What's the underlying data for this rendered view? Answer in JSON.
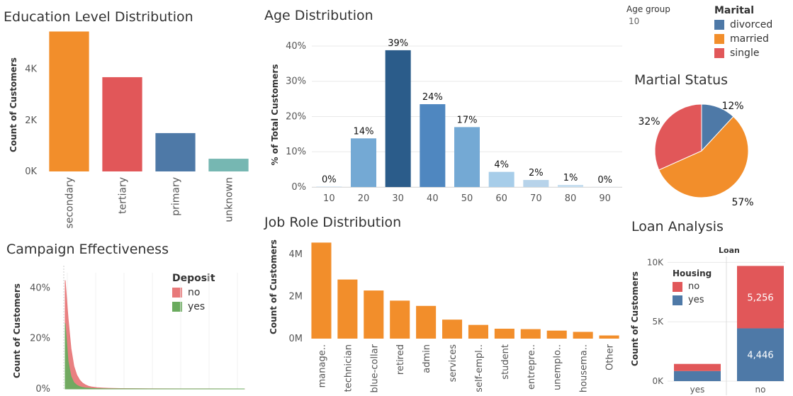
{
  "colors": {
    "orange": "#f28e2b",
    "red": "#e15759",
    "blue": "#4e79a7",
    "teal": "#76b7b2",
    "green": "#59a14f",
    "grid": "#e8e8e8",
    "axis": "#999999",
    "text": "#333333"
  },
  "age_group_filter": {
    "label": "Age group",
    "value": "10"
  },
  "chart_data": [
    {
      "id": "education",
      "type": "bar",
      "title": "Education Level Distribution",
      "ylabel": "Count of Customers",
      "ytick_labels": [
        "0K",
        "2K",
        "4K"
      ],
      "ytick_values": [
        0,
        2000,
        4000
      ],
      "ylim": [
        0,
        5600
      ],
      "categories": [
        "secondary",
        "tertiary",
        "primary",
        "unknown"
      ],
      "values": [
        5476,
        3689,
        1500,
        497
      ],
      "bar_colors": [
        "#f28e2b",
        "#e15759",
        "#4e79a7",
        "#76b7b2"
      ]
    },
    {
      "id": "age",
      "type": "bar",
      "title": "Age Distribution",
      "ylabel": "% of Total Customers",
      "ytick_labels": [
        "0%",
        "10%",
        "20%",
        "30%",
        "40%"
      ],
      "ytick_values": [
        0,
        10,
        20,
        30,
        40
      ],
      "ylim": [
        0,
        42
      ],
      "categories": [
        "10",
        "20",
        "30",
        "40",
        "50",
        "60",
        "70",
        "80",
        "90"
      ],
      "values": [
        0.1,
        13.8,
        38.8,
        23.5,
        17.0,
        4.3,
        2.0,
        0.6,
        0.05
      ],
      "data_labels": [
        "0%",
        "14%",
        "39%",
        "24%",
        "17%",
        "4%",
        "2%",
        "1%",
        "0%"
      ],
      "bar_colors": [
        "#b7d3ea",
        "#74a9d4",
        "#2b5c8a",
        "#4f87c0",
        "#74a9d4",
        "#a7cde9",
        "#b7d3ea",
        "#c6def0",
        "#d7e7f4"
      ]
    },
    {
      "id": "marital",
      "type": "pie",
      "title": "Martial Status",
      "legend_title": "Marital",
      "labels": [
        "divorced",
        "married",
        "single"
      ],
      "values": [
        12,
        57,
        32
      ],
      "data_labels": [
        "12%",
        "57%",
        "32%"
      ],
      "colors": [
        "#4e79a7",
        "#f28e2b",
        "#e15759"
      ]
    },
    {
      "id": "campaign",
      "type": "area",
      "title": "Campaign Effectiveness",
      "ylabel": "Count of Customers",
      "ytick_labels": [
        "0%",
        "20%",
        "40%"
      ],
      "ytick_values": [
        0,
        20,
        40
      ],
      "ylim": [
        0,
        46
      ],
      "legend_title": "Deposit",
      "x": [
        1,
        2,
        3,
        4,
        5,
        6,
        7,
        8,
        9,
        10,
        12,
        14,
        16,
        20,
        25,
        30,
        40,
        50,
        63
      ],
      "series": [
        {
          "name": "no",
          "color": "#e8797a",
          "values": [
            43,
            28,
            16,
            9,
            5.5,
            3.5,
            2.3,
            1.6,
            1.1,
            0.8,
            0.5,
            0.35,
            0.25,
            0.15,
            0.1,
            0.07,
            0.04,
            0.02,
            0.01
          ]
        },
        {
          "name": "yes",
          "color": "#6aab5e",
          "values": [
            26,
            11,
            5,
            2.5,
            1.5,
            0.9,
            0.6,
            0.4,
            0.3,
            0.2,
            0.12,
            0.08,
            0.05,
            0.03,
            0.02,
            0.01,
            0.0,
            0.0,
            0.0
          ]
        }
      ]
    },
    {
      "id": "job",
      "type": "bar",
      "title": "Job Role Distribution",
      "ylabel": "Count of Customers",
      "ytick_labels": [
        "0M",
        "2M",
        "4M"
      ],
      "ytick_values": [
        0,
        2000000,
        4000000
      ],
      "ylim": [
        0,
        4800000
      ],
      "categories": [
        "manage..",
        "technician",
        "blue-collar",
        "retired",
        "admin",
        "services",
        "self-empl..",
        "student",
        "entrepre..",
        "unemplo..",
        "housema..",
        "Other"
      ],
      "values": [
        4550000,
        2800000,
        2280000,
        1800000,
        1550000,
        900000,
        650000,
        470000,
        450000,
        380000,
        320000,
        150000
      ],
      "bar_color": "#f28e2b"
    },
    {
      "id": "loan",
      "type": "bar",
      "title": "Loan Analysis",
      "subtitle": "Loan",
      "ylabel": "Count of Customers",
      "ytick_labels": [
        "0K",
        "5K",
        "10K"
      ],
      "ytick_values": [
        0,
        5000,
        10000
      ],
      "ylim": [
        0,
        10500
      ],
      "legend_title": "Housing",
      "categories": [
        "yes",
        "no"
      ],
      "series": [
        {
          "name": "no",
          "color": "#e15759",
          "values": [
            600,
            5256
          ],
          "data_labels": [
            "",
            "5,256"
          ]
        },
        {
          "name": "yes",
          "color": "#4e79a7",
          "values": [
            850,
            4446
          ],
          "data_labels": [
            "",
            "4,446"
          ]
        }
      ]
    }
  ]
}
